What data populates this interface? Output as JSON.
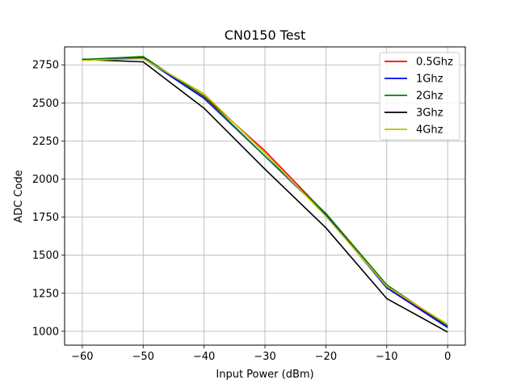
{
  "chart_data": {
    "type": "line",
    "title": "CN0150 Test",
    "xlabel": "Input Power (dBm)",
    "ylabel": "ADC Code",
    "x": [
      -60,
      -50,
      -40,
      -30,
      -20,
      -10,
      0
    ],
    "xlim": [
      -62.9,
      2.9
    ],
    "ylim": [
      909,
      2868
    ],
    "xticks": [
      -60,
      -50,
      -40,
      -30,
      -20,
      -10,
      0
    ],
    "xtick_labels": [
      "−60",
      "−50",
      "−40",
      "−30",
      "−20",
      "−10",
      "0"
    ],
    "yticks": [
      1000,
      1250,
      1500,
      1750,
      2000,
      2250,
      2500,
      2750
    ],
    "grid": true,
    "legend_position": "top-right",
    "series": [
      {
        "name": "0.5Ghz",
        "color": "#ff0000",
        "values": [
          2785,
          2795,
          2545,
          2185,
          1770,
          1290,
          1030
        ]
      },
      {
        "name": "1Ghz",
        "color": "#0000ff",
        "values": [
          2785,
          2795,
          2530,
          2150,
          1765,
          1285,
          1025
        ]
      },
      {
        "name": "2Ghz",
        "color": "#008000",
        "values": [
          2785,
          2805,
          2540,
          2150,
          1775,
          1305,
          1035
        ]
      },
      {
        "name": "3Ghz",
        "color": "#000000",
        "values": [
          2785,
          2770,
          2465,
          2065,
          1680,
          1215,
          995
        ]
      },
      {
        "name": "4Ghz",
        "color": "#bfbf00",
        "values": [
          2780,
          2790,
          2560,
          2170,
          1755,
          1295,
          1045
        ]
      }
    ]
  }
}
